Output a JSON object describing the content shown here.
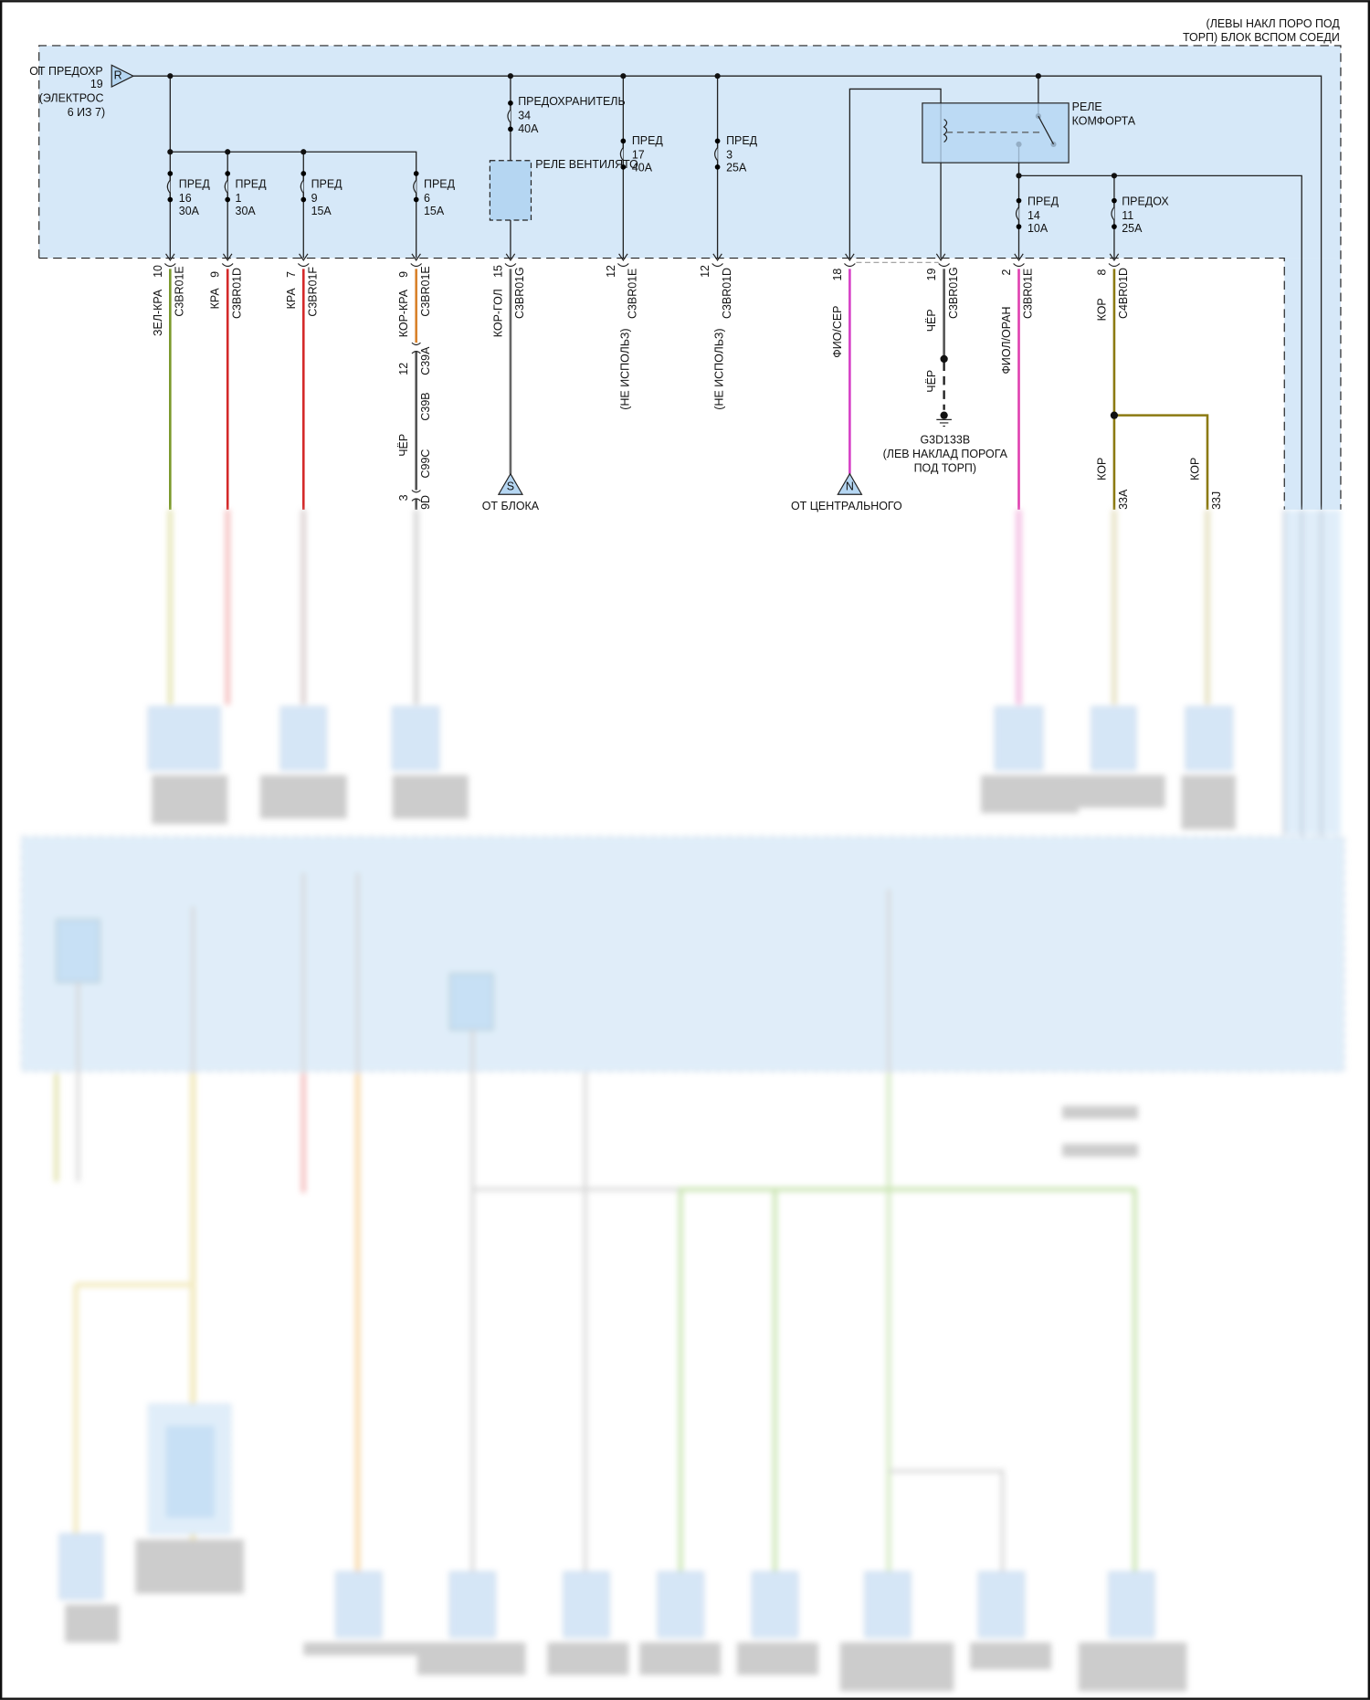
{
  "header": {
    "line1": "(ЛЕВЫ НАКЛ ПОРО ПОД",
    "line2": "ТОРП) БЛОК ВСПОМ СОЕДИ"
  },
  "source": {
    "tag": "R",
    "line1": "ОТ ПРЕДОХР",
    "line2": "19",
    "line3": "(ЭЛЕКТРОС",
    "line4": "6 ИЗ 7)"
  },
  "fuses": [
    {
      "label": "ПРЕД",
      "num": "16",
      "amp": "30A"
    },
    {
      "label": "ПРЕД",
      "num": "1",
      "amp": "30A"
    },
    {
      "label": "ПРЕД",
      "num": "9",
      "amp": "15A"
    },
    {
      "label": "ПРЕД",
      "num": "6",
      "amp": "15A"
    },
    {
      "label": "ПРЕДОХРАНИТЕЛЬ",
      "num": "34",
      "amp": "40A"
    },
    {
      "label": "ПРЕД",
      "num": "17",
      "amp": "40A"
    },
    {
      "label": "ПРЕД",
      "num": "3",
      "amp": "25A"
    },
    {
      "label": "ПРЕД",
      "num": "14",
      "amp": "10A"
    },
    {
      "label": "ПРЕДОХ",
      "num": "11",
      "amp": "25A"
    }
  ],
  "relays": {
    "fan": "РЕЛЕ ВЕНТИЛЯТО",
    "comfort_line1": "РЕЛЕ",
    "comfort_line2": "КОМФОРТА"
  },
  "pins": [
    {
      "pin": "10",
      "connector": "C3BR01E",
      "wire": "ЗЕЛ-КРА",
      "color": "#7b9a2c"
    },
    {
      "pin": "9",
      "connector": "C3BR01D",
      "wire": "КРА",
      "color": "#d42a2a"
    },
    {
      "pin": "7",
      "connector": "C3BR01F",
      "wire": "КРА",
      "color": "#d42a2a"
    },
    {
      "pin": "9",
      "connector": "C3BR01E",
      "wire": "КОР-КРА",
      "color": "#d9822b"
    },
    {
      "pin": "15",
      "connector": "C3BR01G",
      "wire": "КОР-ГОЛ",
      "color": "#666666"
    },
    {
      "pin": "12",
      "connector": "C3BR01E",
      "wire": "(НЕ ИСПОЛЬЗ)"
    },
    {
      "pin": "12",
      "connector": "C3BR01D",
      "wire": "(НЕ ИСПОЛЬЗ)"
    },
    {
      "pin": "18",
      "connector": "",
      "wire": "ФИО/СЕР",
      "color": "#d63fc6"
    },
    {
      "pin": "19",
      "connector": "C3BR01G",
      "wire": "ЧЁР",
      "color": "#555555"
    },
    {
      "pin": "2",
      "connector": "C3BR01E",
      "wire": "ФИОЛ/ОРАН",
      "color": "#e040b0"
    },
    {
      "pin": "8",
      "connector": "C4BR01D",
      "wire": "КОР",
      "color": "#8c7a12"
    }
  ],
  "inline": {
    "pin_a": "12",
    "conn_a": "C39A",
    "conn_b": "C39B",
    "wire": "ЧЁР",
    "conn_c": "C99C",
    "pin_d": "3",
    "conn_d": "9D",
    "wire_color": "#555555"
  },
  "offpage": [
    {
      "tag": "S",
      "text": "ОТ БЛОКА"
    },
    {
      "tag": "N",
      "text": "ОТ ЦЕНТРАЛЬНОГО"
    }
  ],
  "ground": {
    "wire": "ЧЁР",
    "id": "G3D133B",
    "loc1": "(ЛЕВ НАКЛАД ПОРОГА",
    "loc2": "ПОД ТОРП)"
  },
  "splice": {
    "wire_a": "КОР",
    "conn_a": "33A",
    "wire_b": "КОР",
    "conn_b": "33J"
  },
  "colors": {
    "module_fill": "#d6e8f8",
    "relay_fill": "#b5d6f2",
    "outline": "#222222"
  }
}
